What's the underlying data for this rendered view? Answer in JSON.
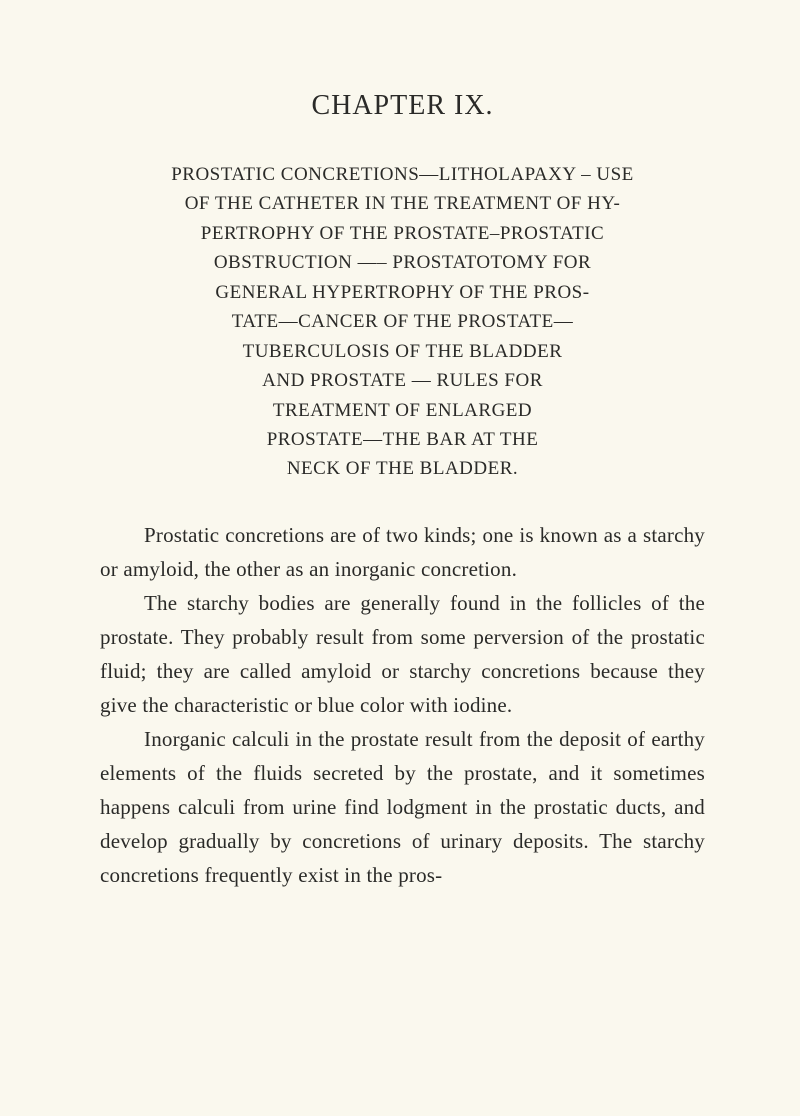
{
  "chapter": {
    "title": "CHAPTER IX."
  },
  "heading": {
    "l1": "PROSTATIC CONCRETIONS—LITHOLAPAXY – USE",
    "l2": "OF THE CATHETER IN THE TREATMENT OF HY-",
    "l3": "PERTROPHY OF THE PROSTATE–PROSTATIC",
    "l4": "OBSTRUCTION —– PROSTATOTOMY FOR",
    "l5": "GENERAL HYPERTROPHY OF THE PROS-",
    "l6": "TATE—CANCER OF THE PROSTATE—",
    "l7": "TUBERCULOSIS OF THE BLADDER",
    "l8": "AND PROSTATE — RULES FOR",
    "l9": "TREATMENT OF ENLARGED",
    "l10": "PROSTATE—THE BAR AT THE",
    "l11": "NECK OF THE BLADDER."
  },
  "paragraphs": {
    "p1": "Prostatic concretions are of two kinds; one is known as a starchy or amyloid, the other as an inor­ganic concretion.",
    "p2": "The starchy bodies are generally found in the follicles of the prostate. They probably result from some perversion of the prostatic fluid; they are called amyloid or starchy concretions because they give the characteristic or blue color with iodine.",
    "p3": "Inorganic calculi in the prostate result from the deposit of earthy elements of the fluids secreted by the prostate, and it sometimes happens calculi from urine find lodgment in the prostatic ducts, and devel­op gradually by concretions of urinary deposits. The starchy concretions frequently exist in the pros-"
  }
}
